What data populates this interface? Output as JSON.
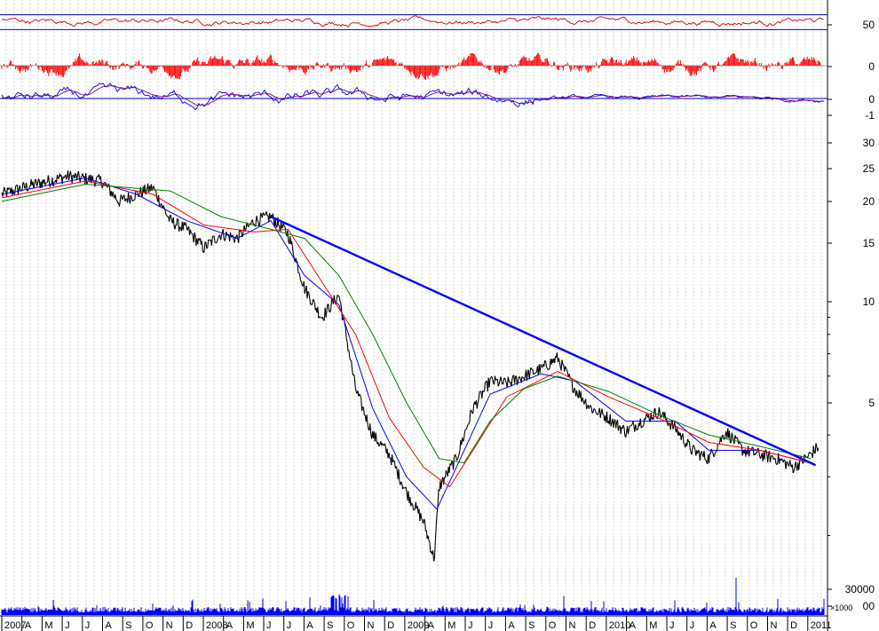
{
  "chart_data": {
    "type": "line",
    "title": "",
    "x_range": [
      "2007-01",
      "2011-01"
    ],
    "x_labels": [
      "2007",
      "A",
      "M",
      "J",
      "J",
      "A",
      "S",
      "O",
      "N",
      "D",
      "2008",
      "A",
      "M",
      "J",
      "J",
      "A",
      "S",
      "O",
      "N",
      "D",
      "2009",
      "A",
      "M",
      "J",
      "J",
      "A",
      "S",
      "O",
      "N",
      "D",
      "2010",
      "A",
      "M",
      "J",
      "J",
      "A",
      "S",
      "O",
      "N",
      "D",
      "2011"
    ],
    "panels": {
      "oscillator": {
        "ticks": [
          "50"
        ],
        "bands": [
          70,
          30
        ],
        "color": "#d00000"
      },
      "histogram": {
        "ticks": [
          "0"
        ],
        "color": "#ff0000"
      },
      "macd": {
        "ticks": [
          "0",
          "-1"
        ],
        "colors": [
          "#0000ff",
          "#800080"
        ]
      },
      "price": {
        "scale": "log",
        "ylim": [
          1.6,
          33
        ],
        "ticks": [
          "30",
          "25",
          "20",
          "15",
          "10",
          "5"
        ],
        "series": [
          {
            "key": "price",
            "color": "#000000",
            "points": [
              [
                "2007-01",
                21
              ],
              [
                "2007-03",
                22.5
              ],
              [
                "2007-05",
                23.8
              ],
              [
                "2007-07",
                23.0
              ],
              [
                "2007-08",
                20.0
              ],
              [
                "2007-09",
                21.0
              ],
              [
                "2007-10",
                22.0
              ],
              [
                "2007-11",
                17.5
              ],
              [
                "2007-12",
                16.5
              ],
              [
                "2008-01",
                14.5
              ],
              [
                "2008-02",
                16.0
              ],
              [
                "2008-03",
                15.5
              ],
              [
                "2008-04",
                17.5
              ],
              [
                "2008-05",
                18.0
              ],
              [
                "2008-06",
                16.0
              ],
              [
                "2008-07",
                11.0
              ],
              [
                "2008-08",
                9.0
              ],
              [
                "2008-09",
                10.5
              ],
              [
                "2008-10",
                5.5
              ],
              [
                "2008-11",
                4.0
              ],
              [
                "2008-12",
                3.5
              ],
              [
                "2009-01",
                2.7
              ],
              [
                "2009-02",
                2.2
              ],
              [
                "2009-02-20",
                1.7
              ],
              [
                "2009-03",
                2.8
              ],
              [
                "2009-04",
                3.4
              ],
              [
                "2009-05",
                4.8
              ],
              [
                "2009-06",
                5.8
              ],
              [
                "2009-07",
                5.7
              ],
              [
                "2009-08",
                6.0
              ],
              [
                "2009-09",
                6.3
              ],
              [
                "2009-10",
                6.8
              ],
              [
                "2009-11",
                5.5
              ],
              [
                "2009-12",
                4.8
              ],
              [
                "2010-01",
                4.5
              ],
              [
                "2010-02",
                4.1
              ],
              [
                "2010-03",
                4.4
              ],
              [
                "2010-04",
                4.7
              ],
              [
                "2010-05",
                4.2
              ],
              [
                "2010-06",
                3.6
              ],
              [
                "2010-07",
                3.4
              ],
              [
                "2010-08",
                4.1
              ],
              [
                "2010-09",
                3.6
              ],
              [
                "2010-10",
                3.5
              ],
              [
                "2010-11",
                3.4
              ],
              [
                "2010-12",
                3.2
              ],
              [
                "2011-01",
                3.5
              ],
              [
                "2011-01-15",
                3.7
              ]
            ]
          },
          {
            "key": "ma_short",
            "color": "#0000ff",
            "points": [
              [
                "2007-01",
                21
              ],
              [
                "2007-06",
                23.5
              ],
              [
                "2007-09",
                21.0
              ],
              [
                "2007-12",
                17.5
              ],
              [
                "2008-03",
                15.5
              ],
              [
                "2008-05",
                17.5
              ],
              [
                "2008-07",
                12.0
              ],
              [
                "2008-09",
                9.8
              ],
              [
                "2008-11",
                4.8
              ],
              [
                "2009-01",
                3.0
              ],
              [
                "2009-02-25",
                2.4
              ],
              [
                "2009-04",
                3.2
              ],
              [
                "2009-06",
                5.3
              ],
              [
                "2009-09",
                6.1
              ],
              [
                "2009-11",
                5.8
              ],
              [
                "2010-02",
                4.4
              ],
              [
                "2010-05",
                4.4
              ],
              [
                "2010-07",
                3.6
              ],
              [
                "2010-10",
                3.6
              ],
              [
                "2011-01",
                3.3
              ]
            ]
          },
          {
            "key": "ma_mid",
            "color": "#ff0000",
            "points": [
              [
                "2007-01",
                20.5
              ],
              [
                "2007-06",
                23.0
              ],
              [
                "2007-10",
                21.0
              ],
              [
                "2008-01",
                17.0
              ],
              [
                "2008-04",
                16.2
              ],
              [
                "2008-06",
                16.5
              ],
              [
                "2008-08",
                11.5
              ],
              [
                "2008-10",
                8.0
              ],
              [
                "2008-12",
                4.5
              ],
              [
                "2009-02",
                3.2
              ],
              [
                "2009-03-20",
                2.8
              ],
              [
                "2009-05",
                3.6
              ],
              [
                "2009-07",
                5.2
              ],
              [
                "2009-10",
                6.2
              ],
              [
                "2010-01",
                5.2
              ],
              [
                "2010-04",
                4.5
              ],
              [
                "2010-07",
                3.8
              ],
              [
                "2010-10",
                3.6
              ],
              [
                "2011-01",
                3.3
              ]
            ]
          },
          {
            "key": "ma_long",
            "color": "#008000",
            "points": [
              [
                "2007-01",
                20
              ],
              [
                "2007-06",
                22.5
              ],
              [
                "2007-11",
                21.5
              ],
              [
                "2008-02",
                18.0
              ],
              [
                "2008-05",
                16.5
              ],
              [
                "2008-07",
                15.5
              ],
              [
                "2008-09",
                12.0
              ],
              [
                "2008-11",
                8.0
              ],
              [
                "2009-01",
                5.0
              ],
              [
                "2009-03",
                3.4
              ],
              [
                "2009-04-15",
                3.3
              ],
              [
                "2009-06",
                4.4
              ],
              [
                "2009-08",
                5.5
              ],
              [
                "2009-10",
                6.0
              ],
              [
                "2010-01",
                5.4
              ],
              [
                "2010-04",
                4.6
              ],
              [
                "2010-07",
                4.0
              ],
              [
                "2010-10",
                3.7
              ],
              [
                "2011-01",
                3.4
              ]
            ]
          },
          {
            "key": "trendline",
            "color": "#0000ff",
            "points": [
              [
                "2008-05",
                18.0
              ],
              [
                "2011-01-10",
                3.25
              ]
            ]
          }
        ]
      },
      "volume": {
        "unit": "×1000",
        "ticks": [
          "30000",
          "00"
        ],
        "color": "#0000ff"
      }
    }
  }
}
